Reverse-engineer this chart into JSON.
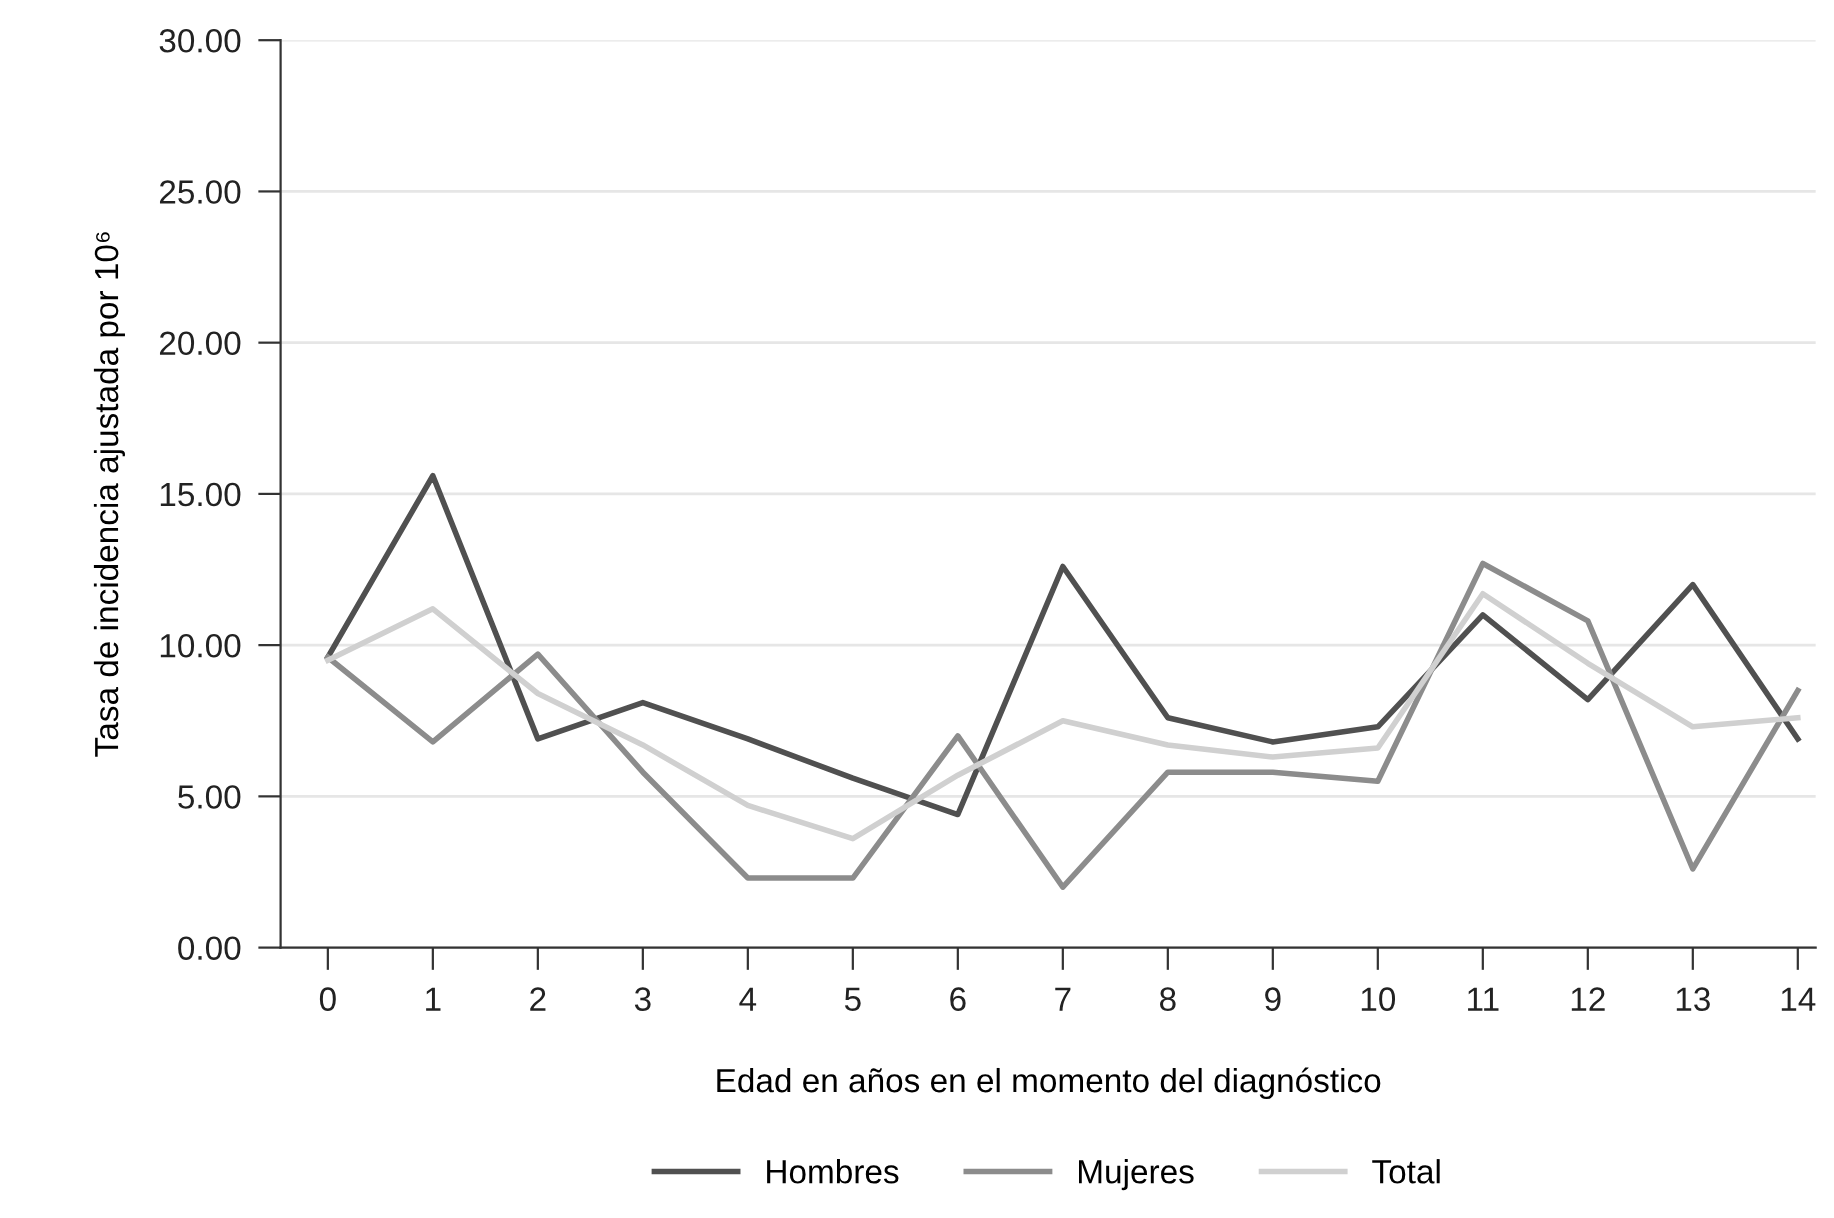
{
  "chart_data": {
    "type": "line",
    "xlabel": "Edad en años en el momento del diagnóstico",
    "ylabel": "Tasa de incidencia ajustada por 10⁶",
    "categories": [
      "0",
      "1",
      "2",
      "3",
      "4",
      "5",
      "6",
      "7",
      "8",
      "9",
      "10",
      "11",
      "12",
      "13",
      "14"
    ],
    "series": [
      {
        "name": "Hombres",
        "color": "#505050",
        "values": [
          9.6,
          15.6,
          6.9,
          8.1,
          6.9,
          5.6,
          4.4,
          12.6,
          7.6,
          6.8,
          7.3,
          11.0,
          8.2,
          12.0,
          6.9
        ]
      },
      {
        "name": "Mujeres",
        "color": "#8c8c8c",
        "values": [
          9.6,
          6.8,
          9.7,
          5.8,
          2.3,
          2.3,
          7.0,
          2.0,
          5.8,
          5.8,
          5.5,
          12.7,
          10.8,
          2.6,
          8.5
        ]
      },
      {
        "name": "Total",
        "color": "#d0d0d0",
        "values": [
          9.5,
          11.2,
          8.4,
          6.7,
          4.7,
          3.6,
          5.7,
          7.5,
          6.7,
          6.3,
          6.6,
          11.7,
          9.4,
          7.3,
          7.6
        ]
      }
    ],
    "ylim": [
      0,
      30
    ],
    "yticks": [
      {
        "value": 0,
        "label": "0.00"
      },
      {
        "value": 5,
        "label": "5.00"
      },
      {
        "value": 10,
        "label": "10.00"
      },
      {
        "value": 15,
        "label": "15.00"
      },
      {
        "value": 20,
        "label": "20.00"
      },
      {
        "value": 25,
        "label": "25.00"
      },
      {
        "value": 30,
        "label": "30.00"
      }
    ],
    "grid": "y",
    "legend": "bottom",
    "marker": "none",
    "line_style": "solid"
  }
}
